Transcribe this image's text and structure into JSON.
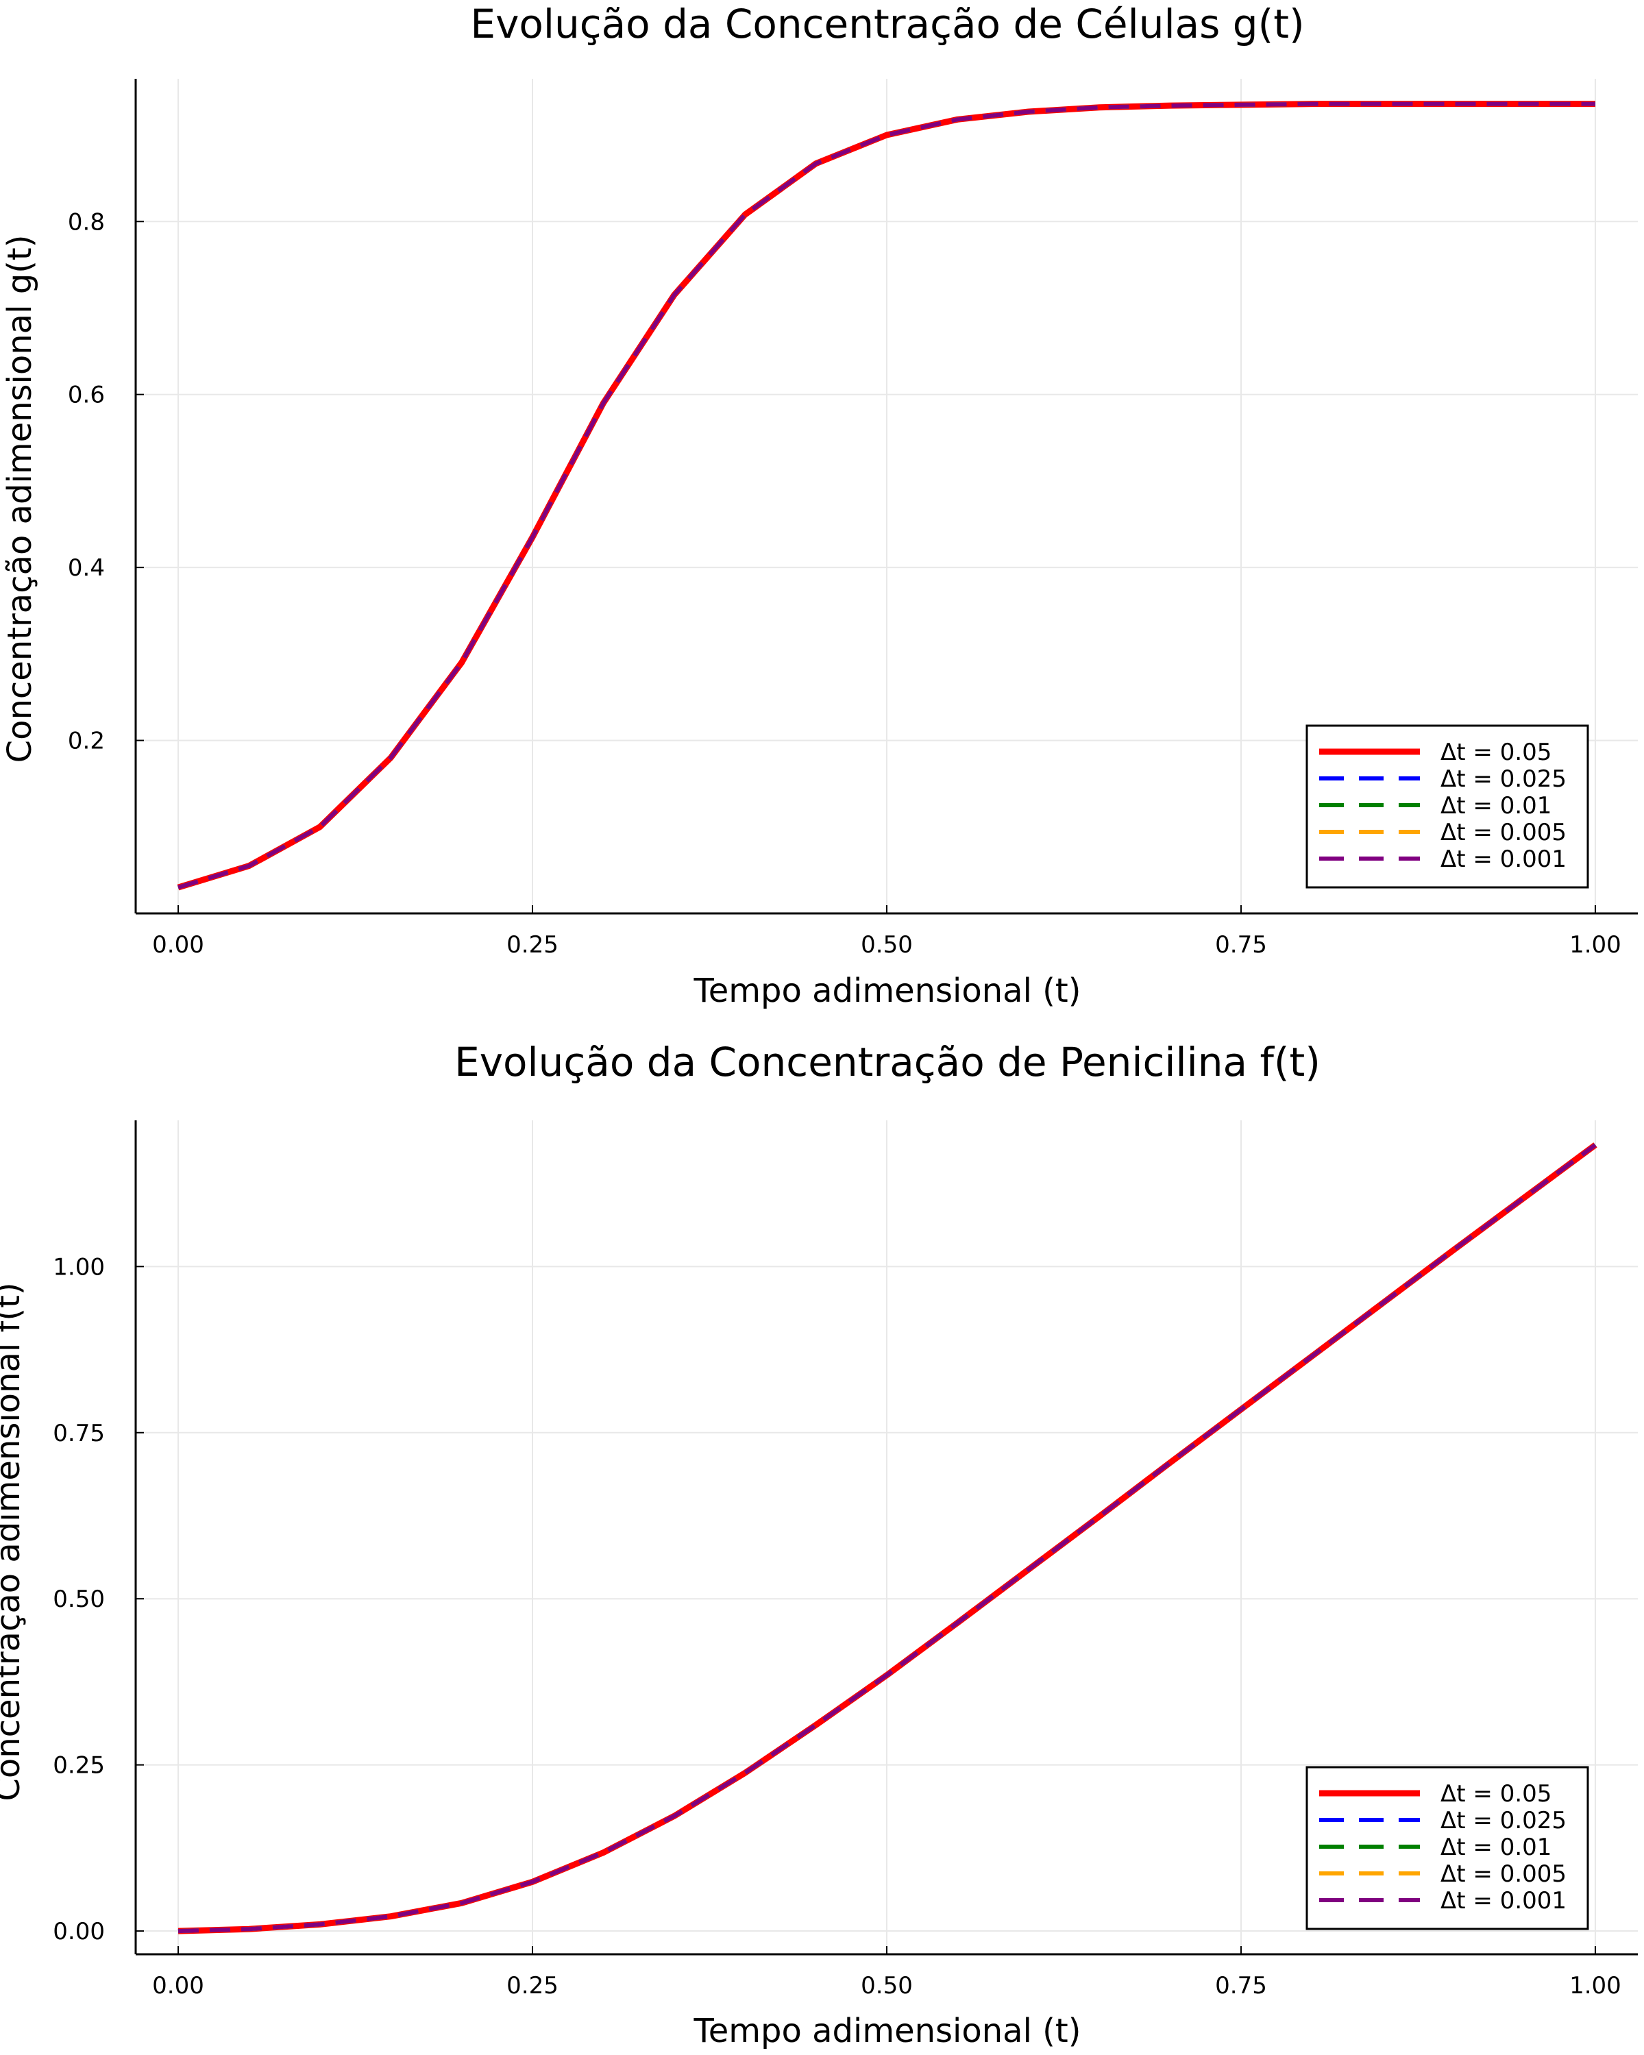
{
  "chart_data": [
    {
      "type": "line",
      "title": "Evolução da Concentração de Células g(t)",
      "xlabel": "Tempo adimensional (t)",
      "ylabel": "Concentração adimensional g(t)",
      "xlim": [
        -0.03,
        1.03
      ],
      "ylim": [
        0.0,
        0.965
      ],
      "xticks": [
        0.0,
        0.25,
        0.5,
        0.75,
        1.0
      ],
      "xtick_labels": [
        "0.00",
        "0.25",
        "0.50",
        "0.75",
        "1.00"
      ],
      "yticks": [
        0.2,
        0.4,
        0.6,
        0.8
      ],
      "ytick_labels": [
        "0.2",
        "0.4",
        "0.6",
        "0.8"
      ],
      "grid": true,
      "legend_position": "bottom-right",
      "x": [
        0.0,
        0.05,
        0.1,
        0.15,
        0.2,
        0.25,
        0.3,
        0.35,
        0.4,
        0.45,
        0.5,
        0.55,
        0.6,
        0.65,
        0.7,
        0.75,
        0.8,
        0.85,
        0.9,
        0.95,
        1.0
      ],
      "series": [
        {
          "name": "Δt = 0.05",
          "color": "#ff0000",
          "style": "solid",
          "values": [
            0.03,
            0.055,
            0.1,
            0.18,
            0.29,
            0.435,
            0.59,
            0.715,
            0.808,
            0.867,
            0.9,
            0.918,
            0.927,
            0.932,
            0.934,
            0.935,
            0.936,
            0.936,
            0.936,
            0.936,
            0.936
          ]
        },
        {
          "name": "Δt = 0.025",
          "color": "#0000ff",
          "style": "dashed",
          "values": [
            0.03,
            0.055,
            0.1,
            0.18,
            0.29,
            0.435,
            0.59,
            0.715,
            0.808,
            0.867,
            0.9,
            0.918,
            0.927,
            0.932,
            0.934,
            0.935,
            0.936,
            0.936,
            0.936,
            0.936,
            0.936
          ]
        },
        {
          "name": "Δt = 0.01",
          "color": "#008000",
          "style": "dashed",
          "values": [
            0.03,
            0.055,
            0.1,
            0.18,
            0.29,
            0.435,
            0.59,
            0.715,
            0.808,
            0.867,
            0.9,
            0.918,
            0.927,
            0.932,
            0.934,
            0.935,
            0.936,
            0.936,
            0.936,
            0.936,
            0.936
          ]
        },
        {
          "name": "Δt = 0.005",
          "color": "#ffa500",
          "style": "dashed",
          "values": [
            0.03,
            0.055,
            0.1,
            0.18,
            0.29,
            0.435,
            0.59,
            0.715,
            0.808,
            0.867,
            0.9,
            0.918,
            0.927,
            0.932,
            0.934,
            0.935,
            0.936,
            0.936,
            0.936,
            0.936,
            0.936
          ]
        },
        {
          "name": "Δt = 0.001",
          "color": "#800080",
          "style": "dashed",
          "values": [
            0.03,
            0.055,
            0.1,
            0.18,
            0.29,
            0.435,
            0.59,
            0.715,
            0.808,
            0.867,
            0.9,
            0.918,
            0.927,
            0.932,
            0.934,
            0.935,
            0.936,
            0.936,
            0.936,
            0.936,
            0.936
          ]
        }
      ]
    },
    {
      "type": "line",
      "title": "Evolução da Concentração de Penicilina f(t)",
      "xlabel": "Tempo adimensional (t)",
      "ylabel": "Concentração adimensional f(t)",
      "xlim": [
        -0.03,
        1.03
      ],
      "ylim": [
        -0.035,
        1.22
      ],
      "xticks": [
        0.0,
        0.25,
        0.5,
        0.75,
        1.0
      ],
      "xtick_labels": [
        "0.00",
        "0.25",
        "0.50",
        "0.75",
        "1.00"
      ],
      "yticks": [
        0.0,
        0.25,
        0.5,
        0.75,
        1.0
      ],
      "ytick_labels": [
        "0.00",
        "0.25",
        "0.50",
        "0.75",
        "1.00"
      ],
      "grid": true,
      "legend_position": "bottom-right",
      "x": [
        0.0,
        0.05,
        0.1,
        0.15,
        0.2,
        0.25,
        0.3,
        0.35,
        0.4,
        0.45,
        0.5,
        0.55,
        0.6,
        0.65,
        0.7,
        0.75,
        0.8,
        0.85,
        0.9,
        0.95,
        1.0
      ],
      "series": [
        {
          "name": "Δt = 0.05",
          "color": "#ff0000",
          "style": "solid",
          "values": [
            0.0,
            0.003,
            0.01,
            0.022,
            0.042,
            0.074,
            0.118,
            0.173,
            0.238,
            0.31,
            0.385,
            0.464,
            0.544,
            0.624,
            0.705,
            0.785,
            0.865,
            0.945,
            1.025,
            1.104,
            1.183
          ]
        },
        {
          "name": "Δt = 0.025",
          "color": "#0000ff",
          "style": "dashed",
          "values": [
            0.0,
            0.003,
            0.01,
            0.022,
            0.042,
            0.074,
            0.118,
            0.173,
            0.238,
            0.31,
            0.385,
            0.464,
            0.544,
            0.624,
            0.705,
            0.785,
            0.865,
            0.945,
            1.025,
            1.104,
            1.183
          ]
        },
        {
          "name": "Δt = 0.01",
          "color": "#008000",
          "style": "dashed",
          "values": [
            0.0,
            0.003,
            0.01,
            0.022,
            0.042,
            0.074,
            0.118,
            0.173,
            0.238,
            0.31,
            0.385,
            0.464,
            0.544,
            0.624,
            0.705,
            0.785,
            0.865,
            0.945,
            1.025,
            1.104,
            1.183
          ]
        },
        {
          "name": "Δt = 0.005",
          "color": "#ffa500",
          "style": "dashed",
          "values": [
            0.0,
            0.003,
            0.01,
            0.022,
            0.042,
            0.074,
            0.118,
            0.173,
            0.238,
            0.31,
            0.385,
            0.464,
            0.544,
            0.624,
            0.705,
            0.785,
            0.865,
            0.945,
            1.025,
            1.104,
            1.183
          ]
        },
        {
          "name": "Δt = 0.001",
          "color": "#800080",
          "style": "dashed",
          "values": [
            0.0,
            0.003,
            0.01,
            0.022,
            0.042,
            0.074,
            0.118,
            0.173,
            0.238,
            0.31,
            0.385,
            0.464,
            0.544,
            0.624,
            0.705,
            0.785,
            0.865,
            0.945,
            1.025,
            1.104,
            1.183
          ]
        }
      ]
    }
  ]
}
